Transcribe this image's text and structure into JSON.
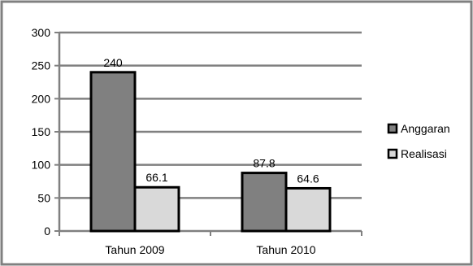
{
  "chart_data": {
    "type": "bar",
    "title": "",
    "xlabel": "",
    "ylabel": "",
    "categories": [
      "Tahun 2009",
      "Tahun 2010"
    ],
    "series": [
      {
        "name": "Anggaran",
        "values": [
          240,
          87.8
        ],
        "labels": [
          "240",
          "87.8"
        ]
      },
      {
        "name": "Realisasi",
        "values": [
          66.1,
          64.6
        ],
        "labels": [
          "66.1",
          "64.6"
        ]
      }
    ],
    "ylim": [
      0,
      300
    ],
    "yticks": [
      0,
      50,
      100,
      150,
      200,
      250,
      300
    ],
    "grid": true,
    "legend": "right",
    "colors": {
      "Anggaran": "#808080",
      "Realisasi": "#d9d9d9",
      "border": "#808080",
      "grid": "#808080"
    }
  }
}
